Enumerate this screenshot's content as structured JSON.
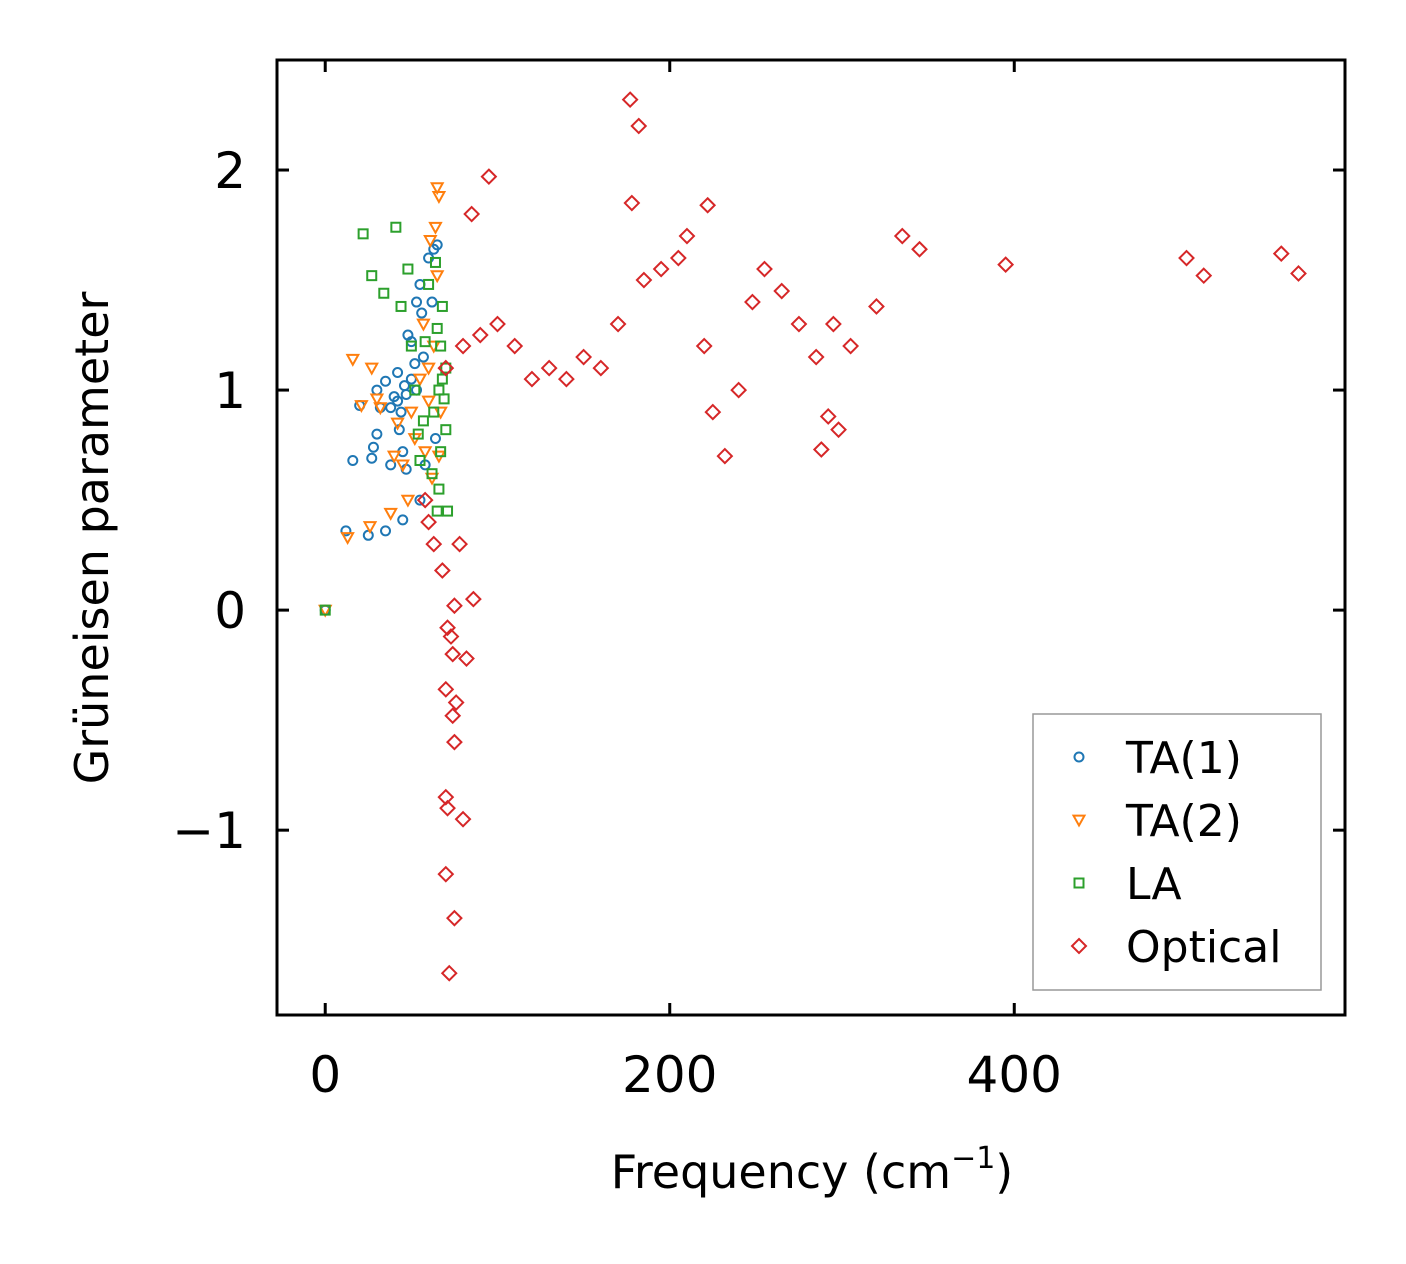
{
  "chart_data": {
    "type": "scatter",
    "xlabel": "Frequency (cm",
    "xlabel_sup": "−1",
    "xlabel_close": ")",
    "ylabel": "Grüneisen parameter",
    "xlim": [
      -28,
      592
    ],
    "ylim": [
      -1.84,
      2.5
    ],
    "xticks": [
      0,
      200,
      400
    ],
    "yticks": [
      -1,
      0,
      1,
      2
    ],
    "xtick_labels": [
      "0",
      "200",
      "400"
    ],
    "ytick_labels": [
      "−1",
      "0",
      "1",
      "2"
    ],
    "legend_position": "lower-right",
    "series": [
      {
        "name": "TA(1)",
        "marker": "circle",
        "color": "#1f77b4",
        "points": [
          [
            0,
            0
          ],
          [
            12,
            0.36
          ],
          [
            16,
            0.68
          ],
          [
            20,
            0.93
          ],
          [
            25,
            0.34
          ],
          [
            27,
            0.69
          ],
          [
            28,
            0.74
          ],
          [
            30,
            1.0
          ],
          [
            30,
            0.8
          ],
          [
            32,
            0.92
          ],
          [
            35,
            0.36
          ],
          [
            35,
            1.04
          ],
          [
            38,
            0.92
          ],
          [
            38,
            0.66
          ],
          [
            40,
            0.97
          ],
          [
            42,
            1.08
          ],
          [
            43,
            0.82
          ],
          [
            45,
            0.41
          ],
          [
            45,
            0.72
          ],
          [
            46,
            1.02
          ],
          [
            47,
            0.64
          ],
          [
            48,
            1.25
          ],
          [
            50,
            1.22
          ],
          [
            52,
            1.12
          ],
          [
            53,
            1.4
          ],
          [
            55,
            1.48
          ],
          [
            55,
            0.5
          ],
          [
            56,
            1.35
          ],
          [
            57,
            1.15
          ],
          [
            58,
            0.66
          ],
          [
            60,
            1.6
          ],
          [
            62,
            1.4
          ],
          [
            63,
            1.64
          ],
          [
            64,
            0.78
          ],
          [
            65,
            1.66
          ],
          [
            42,
            0.95
          ],
          [
            44,
            0.9
          ],
          [
            47,
            0.98
          ],
          [
            50,
            1.05
          ],
          [
            53,
            1.0
          ]
        ]
      },
      {
        "name": "TA(2)",
        "marker": "triangle",
        "color": "#ff7f0e",
        "points": [
          [
            0,
            0
          ],
          [
            13,
            0.33
          ],
          [
            16,
            1.14
          ],
          [
            21,
            0.93
          ],
          [
            26,
            0.38
          ],
          [
            27,
            1.1
          ],
          [
            30,
            0.96
          ],
          [
            32,
            0.92
          ],
          [
            38,
            0.44
          ],
          [
            40,
            0.7
          ],
          [
            42,
            0.85
          ],
          [
            45,
            0.66
          ],
          [
            48,
            0.5
          ],
          [
            50,
            0.9
          ],
          [
            52,
            0.78
          ],
          [
            55,
            1.05
          ],
          [
            57,
            1.3
          ],
          [
            58,
            0.72
          ],
          [
            60,
            0.95
          ],
          [
            61,
            1.68
          ],
          [
            63,
            1.2
          ],
          [
            64,
            1.74
          ],
          [
            65,
            1.52
          ],
          [
            65,
            1.92
          ],
          [
            66,
            1.88
          ],
          [
            66,
            0.7
          ],
          [
            67,
            0.9
          ],
          [
            60,
            1.1
          ],
          [
            62,
            0.6
          ]
        ]
      },
      {
        "name": "LA",
        "marker": "square",
        "color": "#2ca02c",
        "points": [
          [
            0,
            0
          ],
          [
            22,
            1.71
          ],
          [
            27,
            1.52
          ],
          [
            34,
            1.44
          ],
          [
            41,
            1.74
          ],
          [
            44,
            1.38
          ],
          [
            48,
            1.55
          ],
          [
            50,
            1.2
          ],
          [
            52,
            1.0
          ],
          [
            54,
            0.8
          ],
          [
            55,
            0.68
          ],
          [
            57,
            0.86
          ],
          [
            58,
            1.22
          ],
          [
            60,
            1.48
          ],
          [
            62,
            0.62
          ],
          [
            63,
            0.9
          ],
          [
            64,
            1.58
          ],
          [
            65,
            1.28
          ],
          [
            65,
            0.45
          ],
          [
            66,
            0.55
          ],
          [
            67,
            0.72
          ],
          [
            68,
            1.05
          ],
          [
            68,
            1.38
          ],
          [
            69,
            0.96
          ],
          [
            70,
            0.82
          ],
          [
            71,
            0.45
          ],
          [
            70,
            1.1
          ],
          [
            66,
            1.0
          ],
          [
            67,
            1.2
          ]
        ]
      },
      {
        "name": "Optical",
        "marker": "diamond",
        "color": "#d62728",
        "points": [
          [
            70,
            1.1
          ],
          [
            80,
            1.2
          ],
          [
            90,
            1.25
          ],
          [
            100,
            1.3
          ],
          [
            110,
            1.2
          ],
          [
            120,
            1.05
          ],
          [
            130,
            1.1
          ],
          [
            140,
            1.05
          ],
          [
            150,
            1.15
          ],
          [
            160,
            1.1
          ],
          [
            170,
            1.3
          ],
          [
            178,
            1.85
          ],
          [
            185,
            1.5
          ],
          [
            195,
            1.55
          ],
          [
            205,
            1.6
          ],
          [
            210,
            1.7
          ],
          [
            220,
            1.2
          ],
          [
            225,
            0.9
          ],
          [
            232,
            0.7
          ],
          [
            240,
            1.0
          ],
          [
            248,
            1.4
          ],
          [
            255,
            1.55
          ],
          [
            265,
            1.45
          ],
          [
            275,
            1.3
          ],
          [
            285,
            1.15
          ],
          [
            295,
            1.3
          ],
          [
            305,
            1.2
          ],
          [
            320,
            1.38
          ],
          [
            335,
            1.7
          ],
          [
            345,
            1.64
          ],
          [
            395,
            1.57
          ],
          [
            500,
            1.6
          ],
          [
            510,
            1.52
          ],
          [
            555,
            1.62
          ],
          [
            565,
            1.53
          ],
          [
            177,
            2.32
          ],
          [
            182,
            2.2
          ],
          [
            222,
            1.84
          ],
          [
            95,
            1.97
          ],
          [
            85,
            1.8
          ],
          [
            78,
            0.3
          ],
          [
            75,
            0.02
          ],
          [
            73,
            -0.12
          ],
          [
            71,
            -0.08
          ],
          [
            74,
            -0.2
          ],
          [
            70,
            -0.36
          ],
          [
            76,
            -0.42
          ],
          [
            74,
            -0.48
          ],
          [
            75,
            -0.6
          ],
          [
            70,
            -0.85
          ],
          [
            71,
            -0.9
          ],
          [
            80,
            -0.95
          ],
          [
            70,
            -1.2
          ],
          [
            75,
            -1.4
          ],
          [
            72,
            -1.65
          ],
          [
            86,
            0.05
          ],
          [
            82,
            -0.22
          ],
          [
            63,
            0.3
          ],
          [
            68,
            0.18
          ],
          [
            58,
            0.5
          ],
          [
            60,
            0.4
          ],
          [
            288,
            0.73
          ],
          [
            292,
            0.88
          ],
          [
            298,
            0.82
          ]
        ]
      }
    ]
  }
}
